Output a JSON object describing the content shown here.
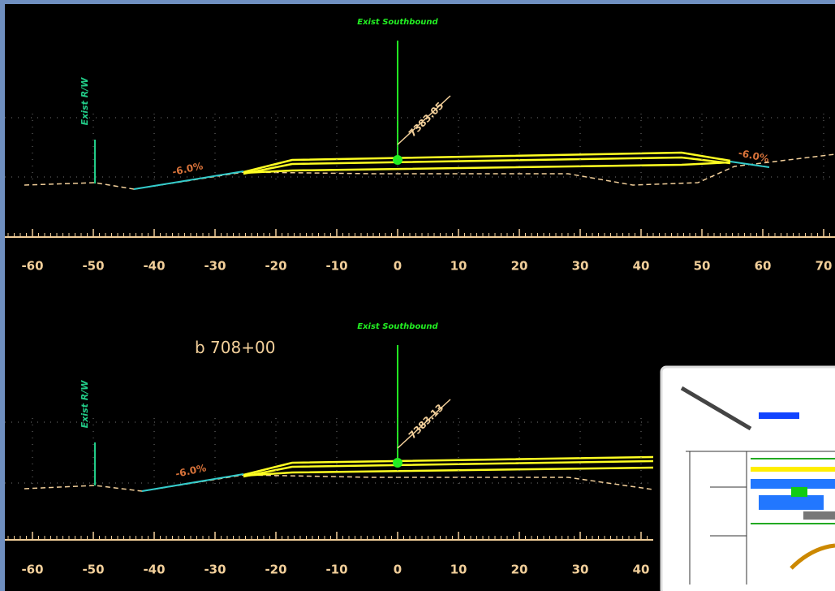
{
  "sections": [
    {
      "centerline_label": "Exist Southbound",
      "row_label": "Exist R/W",
      "elevation": "7383.05",
      "slope_left": "-6.0%",
      "slope_right": "-6.0%",
      "axis_labels": [
        -60,
        -50,
        -40,
        -30,
        -20,
        -10,
        0,
        10,
        20,
        30,
        40,
        50,
        60,
        70
      ]
    },
    {
      "station": "b 708+00",
      "centerline_label": "Exist Southbound",
      "row_label": "Exist R/W",
      "elevation": "7383.13",
      "slope_left": "-6.0%",
      "axis_labels": [
        -60,
        -50,
        -40,
        -30,
        -20,
        -10,
        0,
        10,
        20,
        30,
        40
      ]
    }
  ]
}
